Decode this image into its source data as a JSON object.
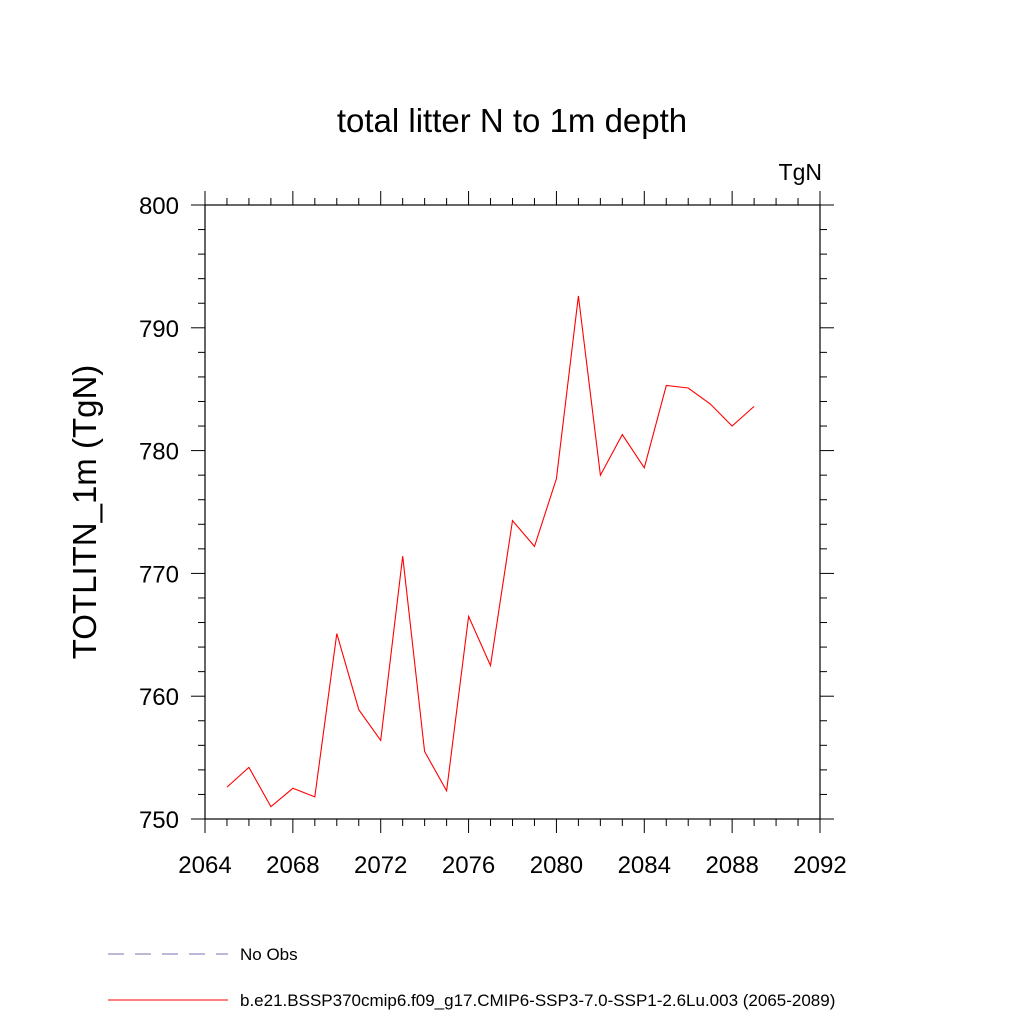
{
  "chart_data": {
    "type": "line",
    "title": "total litter N to 1m depth",
    "units": "TgN",
    "ylabel": "TOTLITN_1m  (TgN)",
    "xlabel": "",
    "xlim": [
      2064,
      2092
    ],
    "ylim": [
      750,
      800
    ],
    "x_ticks": [
      2064,
      2068,
      2072,
      2076,
      2080,
      2084,
      2088,
      2092
    ],
    "y_ticks": [
      750,
      760,
      770,
      780,
      790,
      800
    ],
    "grid": false,
    "legend_position": "bottom",
    "legend": [
      {
        "label": "No Obs",
        "style": "dashed",
        "color": "#7b6fb0"
      },
      {
        "label": "b.e21.BSSP370cmip6.f09_g17.CMIP6-SSP3-7.0-SSP1-2.6Lu.003 (2065-2089)",
        "style": "solid",
        "color": "#ff0000"
      }
    ],
    "series": [
      {
        "name": "b.e21.BSSP370cmip6.f09_g17.CMIP6-SSP3-7.0-SSP1-2.6Lu.003 (2065-2089)",
        "color": "#ff0000",
        "x": [
          2065,
          2066,
          2067,
          2068,
          2069,
          2070,
          2071,
          2072,
          2073,
          2074,
          2075,
          2076,
          2077,
          2078,
          2079,
          2080,
          2081,
          2082,
          2083,
          2084,
          2085,
          2086,
          2087,
          2088,
          2089
        ],
        "y": [
          752.6,
          754.2,
          751.0,
          752.5,
          751.8,
          765.1,
          758.9,
          756.4,
          771.4,
          755.5,
          752.3,
          766.5,
          762.5,
          774.3,
          772.2,
          777.7,
          792.6,
          778.0,
          781.3,
          778.6,
          785.3,
          785.1,
          783.8,
          782.0,
          783.6
        ]
      }
    ]
  }
}
